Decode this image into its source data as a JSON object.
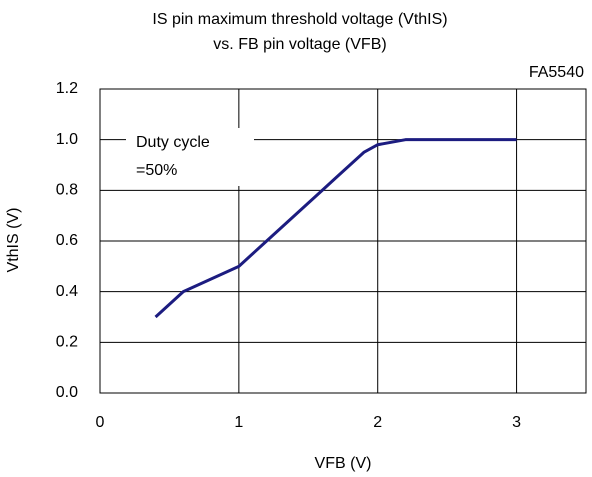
{
  "chart_data": {
    "type": "line",
    "title": "IS pin maximum threshold voltage (VthIS)",
    "subtitle": "vs. FB pin voltage (VFB)",
    "annotation": "FA5540",
    "note": [
      "Duty cycle",
      "=50%"
    ],
    "xlabel": "VFB (V)",
    "ylabel": "VthIS (V)",
    "x": [
      0.4,
      0.6,
      1.0,
      1.2,
      1.6,
      1.7,
      1.9,
      2.0,
      2.2,
      3.0
    ],
    "series": [
      {
        "name": "Duty cycle =50%",
        "color": "#1c1c80",
        "values": [
          0.3,
          0.4,
          0.5,
          0.6,
          0.8,
          0.85,
          0.95,
          0.98,
          1.0,
          1.0
        ]
      }
    ],
    "xlim": [
      0,
      3.5
    ],
    "xticks": [
      0,
      1,
      2,
      3
    ],
    "ylim": [
      0,
      1.2
    ],
    "yticks": [
      {
        "value": 0,
        "label": "0.0"
      },
      0.2,
      0.4,
      0.6,
      0.8,
      {
        "value": 1,
        "label": "1.0"
      },
      1.2
    ],
    "grid": true
  }
}
